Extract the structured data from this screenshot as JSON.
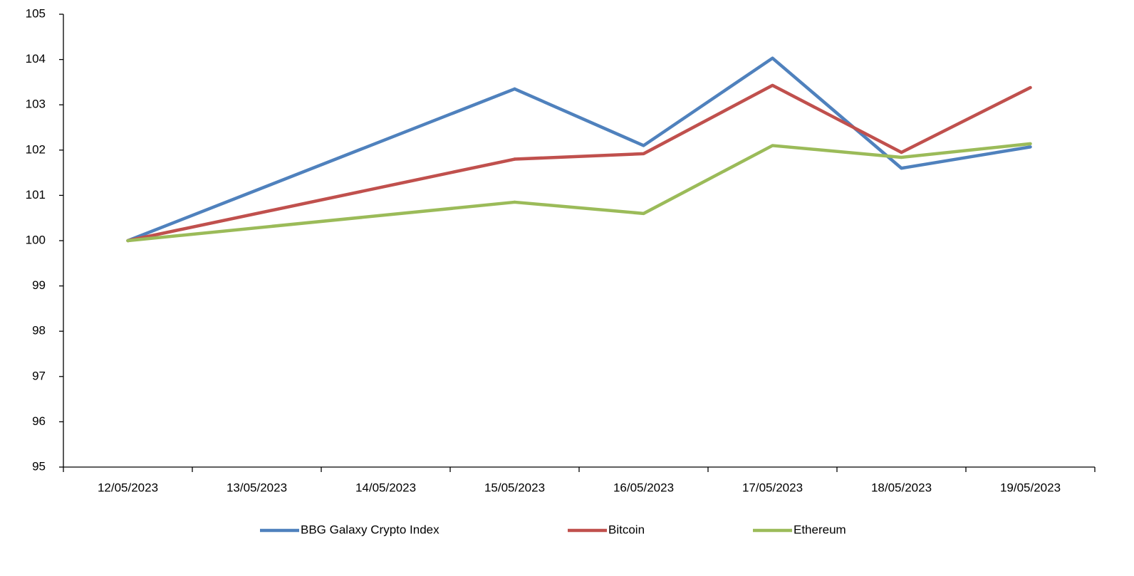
{
  "chart_data": {
    "type": "line",
    "categories": [
      "12/05/2023",
      "13/05/2023",
      "14/05/2023",
      "15/05/2023",
      "16/05/2023",
      "17/05/2023",
      "18/05/2023",
      "19/05/2023"
    ],
    "series": [
      {
        "name": "BBG Galaxy Crypto Index",
        "color": "#4f81bd",
        "values": [
          100,
          null,
          null,
          103.35,
          102.1,
          104.03,
          101.6,
          102.07
        ]
      },
      {
        "name": "Bitcoin",
        "color": "#c0504d",
        "values": [
          100,
          null,
          null,
          101.8,
          101.92,
          103.43,
          101.95,
          103.38
        ]
      },
      {
        "name": "Ethereum",
        "color": "#9bbb59",
        "values": [
          100,
          null,
          null,
          100.85,
          100.6,
          102.1,
          101.84,
          102.14
        ]
      }
    ],
    "ylim": [
      95,
      105
    ],
    "yticks": [
      95,
      96,
      97,
      98,
      99,
      100,
      101,
      102,
      103,
      104,
      105
    ],
    "connect_gaps": true,
    "legend": "bottom"
  }
}
